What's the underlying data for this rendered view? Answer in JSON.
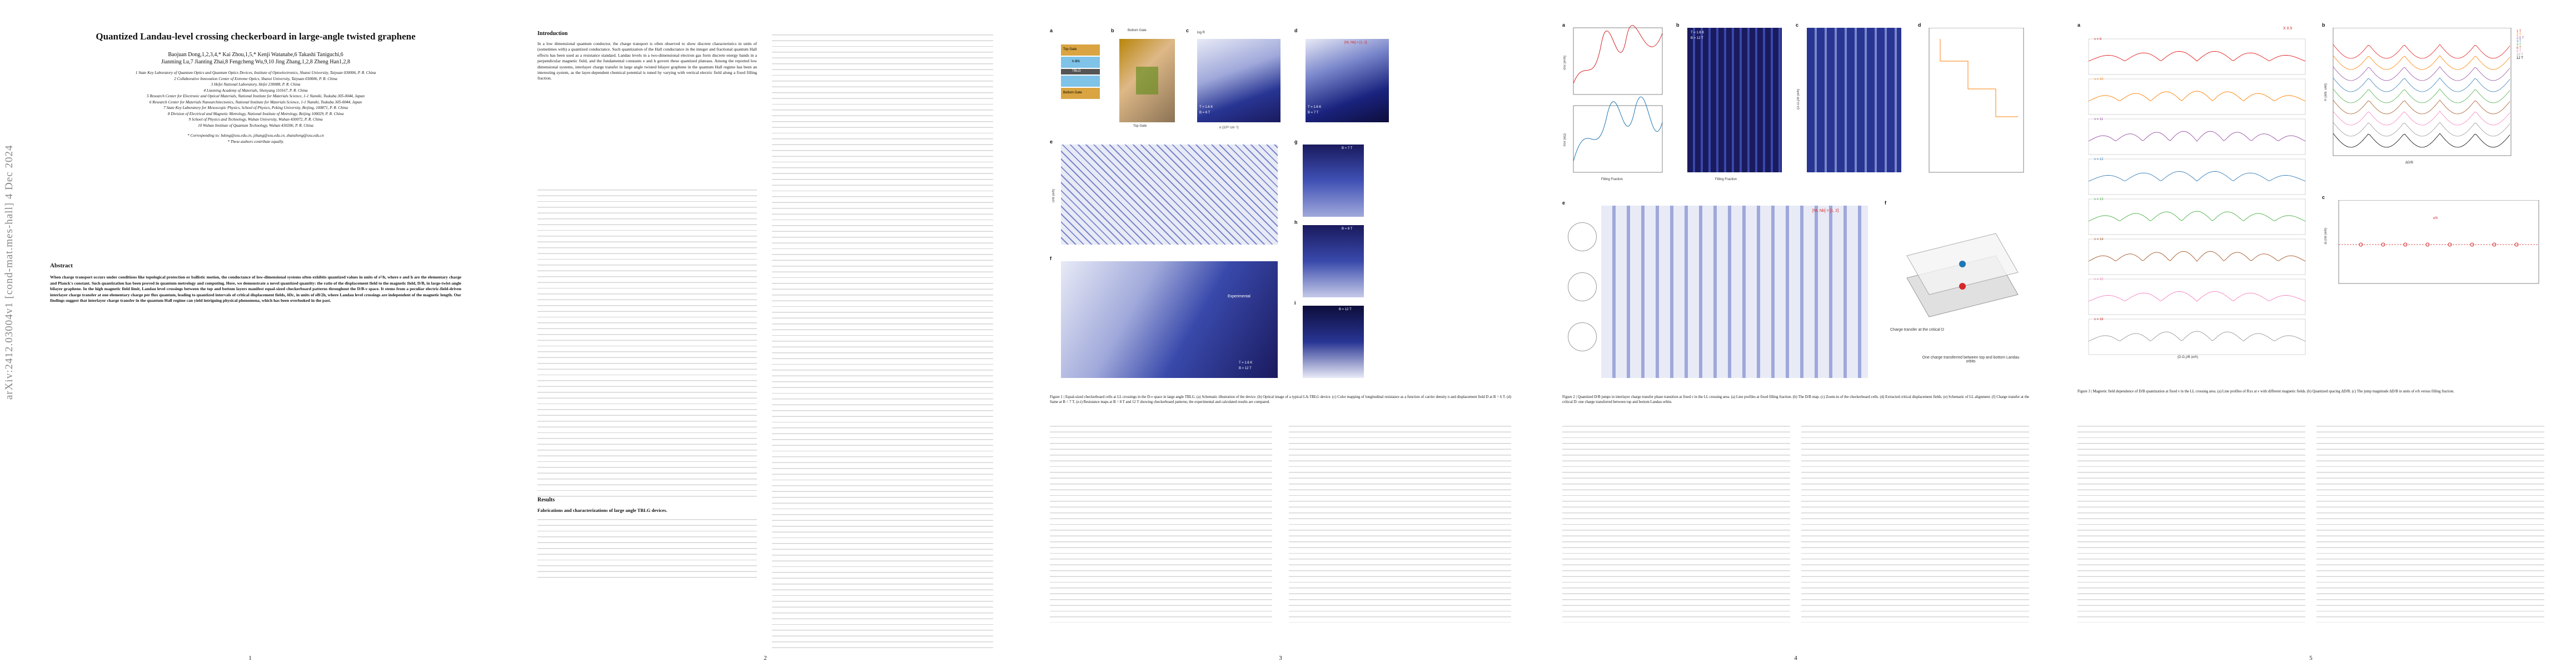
{
  "paper": {
    "arxiv_id": "arXiv:2412.03004v1  [cond-mat.mes-hall]  4 Dec 2024",
    "title": "Quantized Landau-level crossing checkerboard in large-angle twisted graphene",
    "authors_line1": "Baojuan Dong,1,2,3,4,* Kai Zhou,1,5,* Kenji Watanabe,6 Takashi Taniguchi,6",
    "authors_line2": "Jianming Lu,7 Jianting Zhai,8 Fengcheng Wu,9,10 Jing Zhang,1,2,8 Zheng Han1,2,8",
    "affiliations": [
      "1 State Key Laboratory of Quantum Optics and Quantum Optics Devices, Institute of Optoelectronics, Shanxi University, Taiyuan 030006, P. R. China",
      "2 Collaborative Innovation Center of Extreme Optics, Shanxi University, Taiyuan 030006, P. R. China",
      "3 Hefei National Laboratory, Hefei 230088, P. R. China",
      "4 Liaoning Academy of Materials, Shenyang 110167, P. R. China",
      "5 Research Center for Electronic and Optical Materials, National Institute for Materials Science, 1-1 Namiki, Tsukuba 305-0044, Japan",
      "6 Research Center for Materials Nanoarchitectonics, National Institute for Materials Science, 1-1 Namiki, Tsukuba 305-0044, Japan",
      "7 State Key Laboratory for Mesoscopic Physics, School of Physics, Peking University, Beijing, 100871, P. R. China",
      "8 Division of Electrical and Magnetic Metrology, National Institute of Metrology, Beijing 100029, P. R. China",
      "9 School of Physics and Technology, Wuhan University, Wuhan 430072, P. R. China",
      "10 Wuhan Institute of Quantum Technology, Wuhan 430206, P. R. China",
      "* Corresponding to: bdong@sxu.edu.cn, jzhang@sxu.edu.cn, zhanzheng@sxu.edu.cn",
      "* These authors contribute equally."
    ],
    "abstract_heading": "Abstract",
    "abstract": "When charge transport occurs under conditions like topological protection or ballistic motion, the conductance of low-dimensional systems often exhibits quantized values in units of e²/h, where e and h are the elementary charge and Planck's constant. Such quantization has been proved in quantum metrology and computing. Here, we demonstrate a novel quantized quantity: the ratio of the displacement field to the magnetic field, D/B, in large-twist-angle bilayer graphene. In the high magnetic field limit, Landau level crossings between the top and bottom layers manifest equal-sized checkerboard patterns throughout the D/B-ν space. It stems from a peculiar electric-field-driven interlayer charge transfer at one elementary charge per flux quantum, leading to quantized intervals of critical displacement fields, δDc, in units of eB/2h, where Landau level crossings are independent of the magnetic length. Our findings suggest that interlayer charge transfer in the quantum Hall regime can yield intriguing physical phenomena, which has been overlooked in the past.",
    "intro_heading": "Introduction",
    "intro_text": "In a low dimensional quantum conductor, the charge transport is often observed to show discrete characteristics in units of (sometimes with) a quantized conductance. Such quantization of the Hall conductance in the integer and fractional quantum Hall effects has been used as a resistance standard. Landau levels in a two-dimensional electron gas form discrete energy bands in a perpendicular magnetic field, and the fundamental constants e and h govern these quantized plateaus. Among the reported low dimensional systems, interlayer charge transfer in large angle twisted bilayer graphene in the quantum Hall regime has been an interesting system, as the layer-dependent chemical potential is tuned by varying with vertical electric field along a fixed filling fraction.",
    "results_heading": "Results",
    "results_sub": "Fabrications and characterizations of large angle TBLG devices.",
    "fig1_caption": "Figure 1 | Equal-sized checkerboard cells at LL crossings in the D-ν space in large angle TBLG. (a) Schematic illustration of the device. (b) Optical image of a typical LA-TBLG device. (c) Color mapping of longitudinal resistance as a function of carrier density n and displacement field D at B = 6 T. (d) Same at B = 7 T. (e-i) Resistance maps at B = 8 T and 12 T showing checkerboard patterns; the experimental and calculated results are compared.",
    "fig2_caption": "Figure 2 | Quantized D/B jumps in interlayer charge transfer phase transition at fixed ν in the LL crossing area. (a) Line profiles at fixed filling fraction. (b) The D/B map. (c) Zoom-in of the checkerboard cells. (d) Extracted critical displacement fields. (e) Schematic of LL alignment. (f) Charge transfer at the critical D: one charge transferred between top and bottom Landau orbits.",
    "fig3_caption": "Figure 3 | Magnetic field dependence of D/B quantization at fixed ν in the LL crossing area. (a) Line profiles of Rxx at ν with different magnetic fields. (b) Quantized spacing ΔD/B. (c) The jump magnitude ΔD/B in units of e/h versus filling fraction."
  },
  "figure_labels": {
    "fig1": {
      "a": "a",
      "b": "b",
      "c": "c",
      "d": "d",
      "e": "e",
      "f": "f",
      "g": "g",
      "h": "h",
      "i": "i",
      "top_gate": "Top Gate",
      "bottom_gate": "Bottom Gate",
      "hbn": "h-BN",
      "tblg": "TBLG",
      "bottom_gate_label": "Bottom Gate",
      "top_gate_label": "Top Gate",
      "temp1": "T = 1.6 K",
      "b1": "B = 6 T",
      "temp2": "T = 1.6 K",
      "b2": "B = 7 T",
      "nt_nb": "[Nt, Nb] = [1, 2]",
      "experimental": "Experimental",
      "t_val": "T = 1.6 K",
      "b_val": "B = 12 T",
      "g_b7": "B = 7 T",
      "h_b8": "B = 8 T",
      "i_b12": "B = 12 T",
      "logRxx": "log R",
      "x_n": "n (10¹² cm⁻²)",
      "y_D": "D (V nm⁻¹)",
      "y_DB": "D/B (e/h)"
    },
    "fig2": {
      "a": "a",
      "b": "b",
      "c": "c",
      "d": "d",
      "e": "e",
      "f": "f",
      "temp": "T = 1.6 K",
      "field": "B = 12 T",
      "nt_nb": "[Nt, Nb] = [1, 2]",
      "x_ff": "Filling Fraction",
      "y_sxx": "σxx (e²/h)",
      "y_rxx": "Rxx (kΩ)",
      "y_db": "(D-D₀)/B (e/h)",
      "charge_transfer": "Charge transfer at the critical D",
      "one_charge": "One charge transferred between top and bottom Landau orbits"
    },
    "fig3": {
      "a": "a",
      "b": "b",
      "c": "c",
      "ratio": "X 0.5",
      "legend": [
        "1 T",
        "2 T",
        "2.5 T",
        "3 T",
        "4 T",
        "6 T",
        "8 T",
        "10 T",
        "12 T"
      ],
      "nu_labels": [
        "ν = 8",
        "ν = 10",
        "ν = 11",
        "ν = 12",
        "ν = 13",
        "ν = 14",
        "ν = 15",
        "ν = 16"
      ],
      "x_db": "(D-D₀)/B (e/h)",
      "delta_db": "ΔD/B",
      "y_ratio": "Δ D/B (e/h)",
      "y_r": "R (arb. unit)",
      "eh": "e/h"
    }
  },
  "page_numbers": [
    "1",
    "2",
    "3",
    "4",
    "5"
  ],
  "legend_colors": [
    "#e41a1c",
    "#ff7f00",
    "#984ea3",
    "#377eb8",
    "#4daf4a",
    "#a65628",
    "#f781bf",
    "#999999",
    "#000000"
  ],
  "colors": {
    "map_dark": "#1a1a5e",
    "map_light": "#e8eaf6",
    "accent_red": "#d62728",
    "accent_blue": "#1f77b4"
  }
}
